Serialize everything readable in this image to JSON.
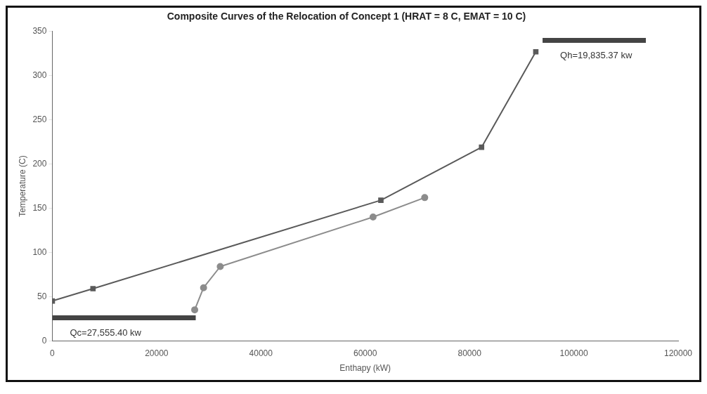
{
  "chart_data": {
    "type": "line",
    "title": "Composite Curves of the Relocation of Concept 1 (HRAT = 8 C, EMAT = 10 C)",
    "xlabel": "Enthapy (kW)",
    "ylabel": "Temperature (C)",
    "series": [
      {
        "color": "#5a5a5a",
        "marker": "square",
        "x": [
          0,
          7800,
          63000,
          82300,
          92700
        ],
        "values": [
          45,
          59,
          159,
          219,
          327
        ]
      },
      {
        "color": "#8c8c8c",
        "marker": "circle",
        "x": [
          27300,
          29000,
          32200,
          61500,
          71400
        ],
        "values": [
          35,
          60,
          84,
          140,
          162
        ]
      },
      {
        "color": "#444444",
        "marker": "none",
        "x": [
          0,
          27500
        ],
        "values": [
          26,
          26
        ]
      },
      {
        "color": "#444444",
        "marker": "none",
        "x": [
          94000,
          113800
        ],
        "values": [
          340,
          340
        ]
      }
    ],
    "annotations": [
      "Qc=27,555.40 kw",
      "Qh=19,835.37 kw"
    ],
    "xlim": [
      0,
      120000
    ],
    "xticks": [
      0,
      20000,
      40000,
      60000,
      80000,
      100000,
      120000
    ],
    "ylim": [
      0,
      350
    ],
    "yticks": [
      0,
      50,
      100,
      150,
      200,
      250,
      300,
      350
    ],
    "grid": false,
    "legend": false,
    "line_style": "solid"
  }
}
